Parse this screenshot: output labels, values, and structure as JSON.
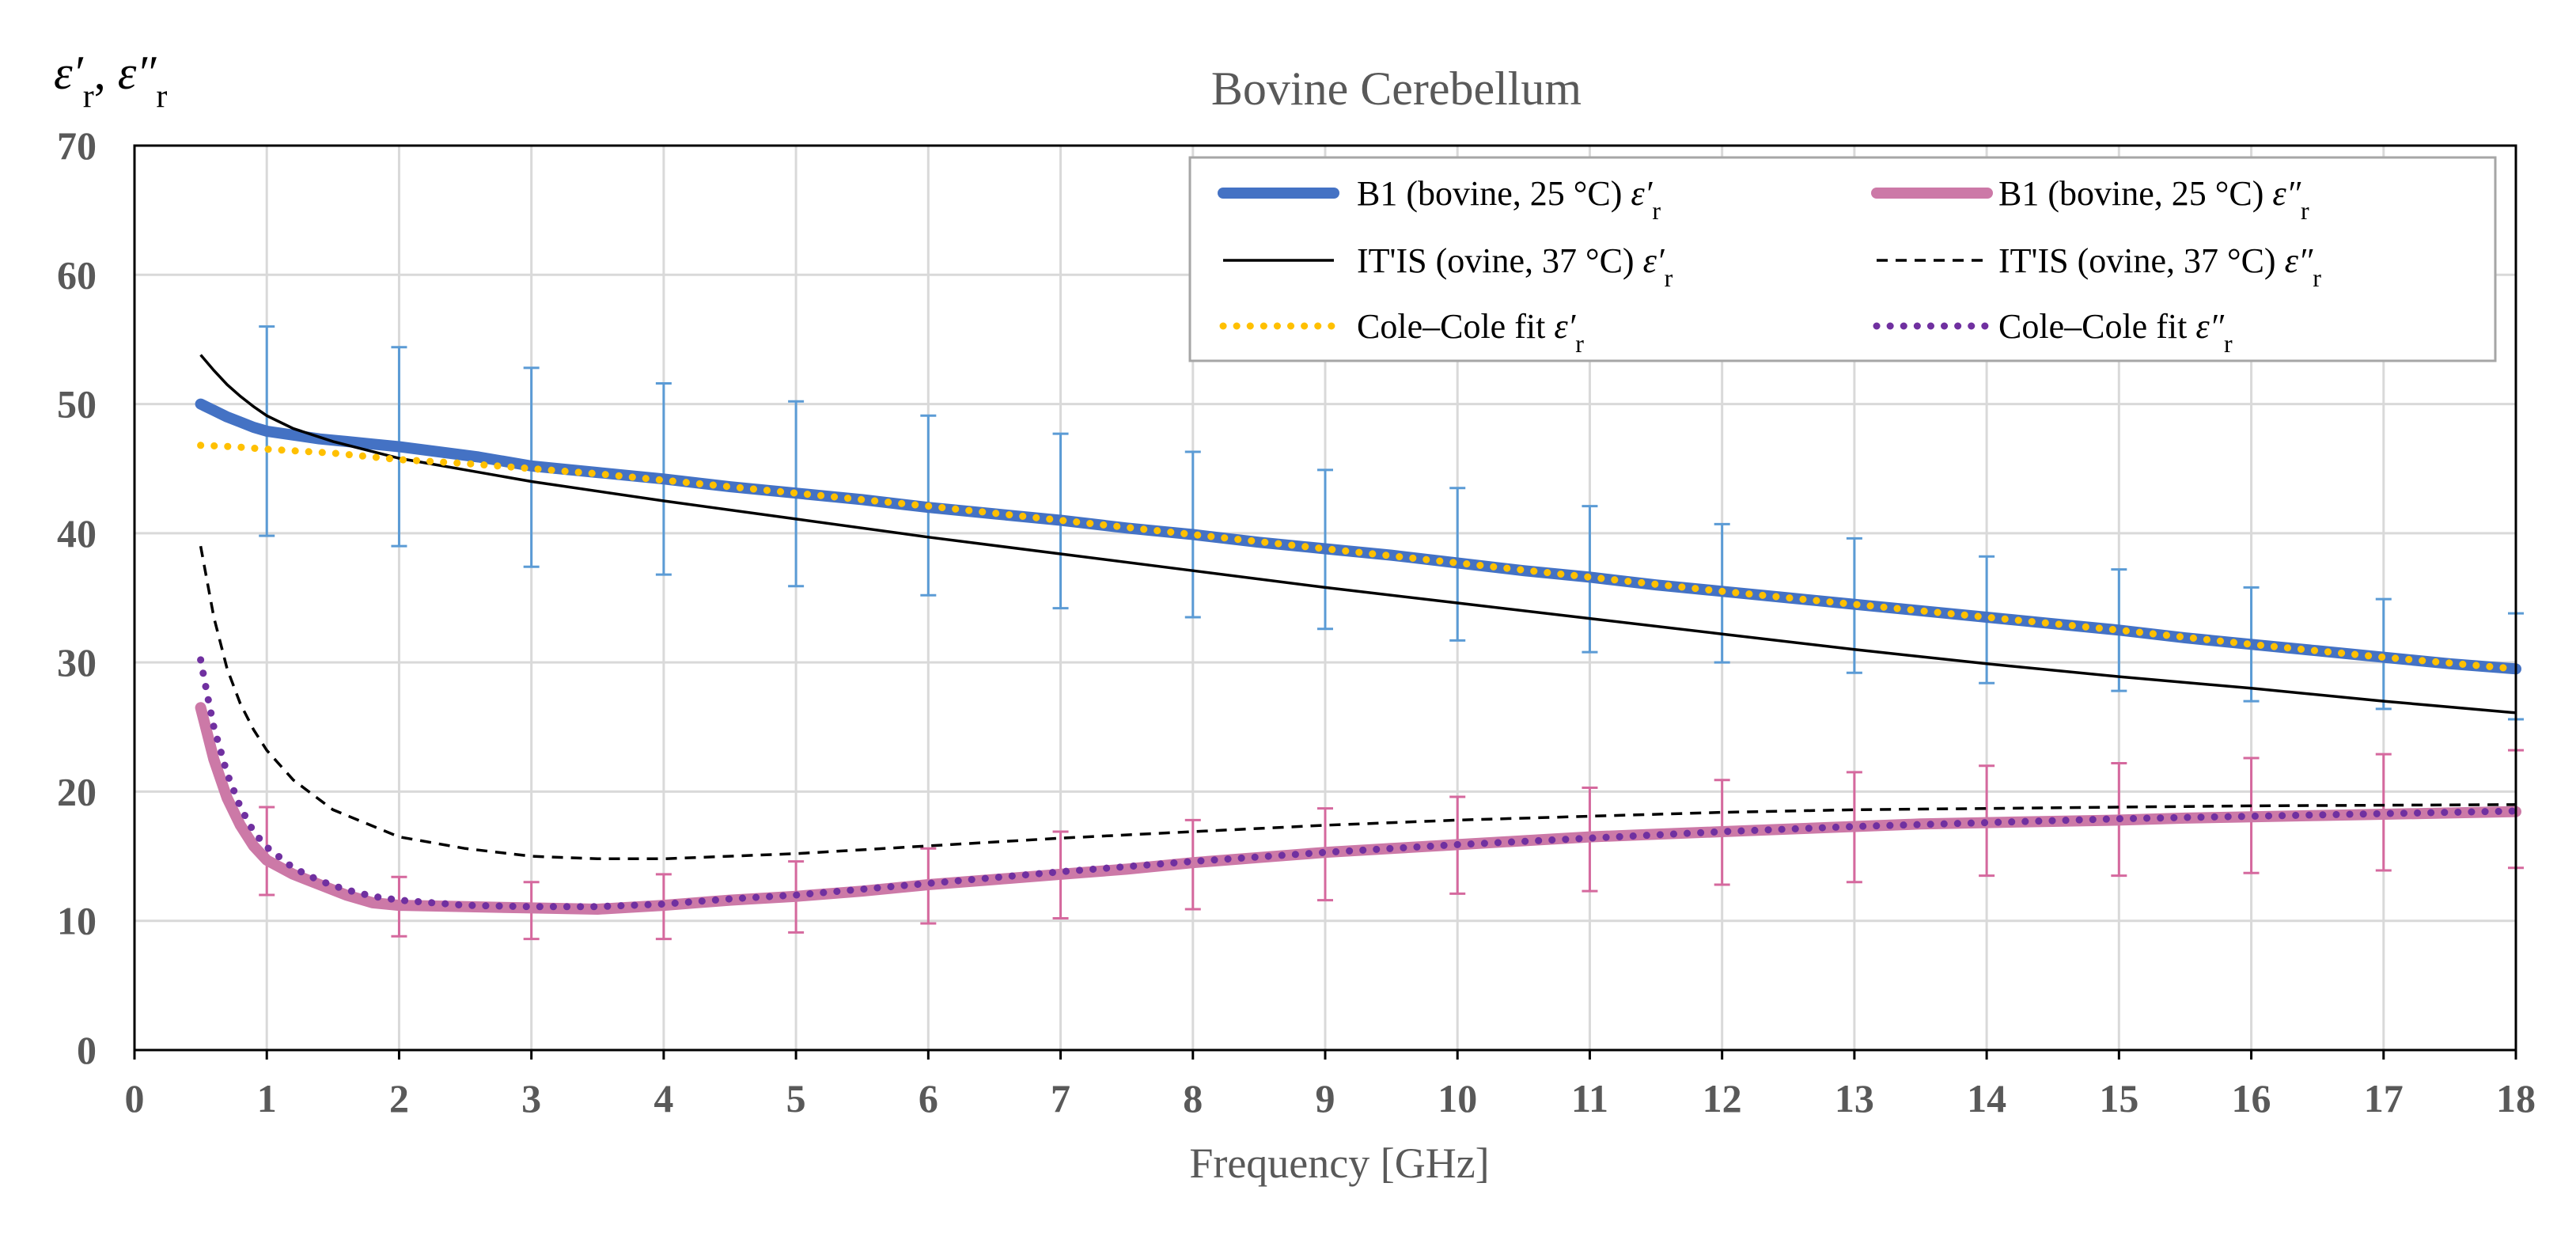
{
  "chart_data": {
    "type": "line",
    "title": "Bovine Cerebellum",
    "xlabel": "Frequency [GHz]",
    "ylabel": {
      "prime": "ε′",
      "double_prime": "ε″",
      "sub": "r",
      "sep": ", "
    },
    "xlim": [
      0,
      18
    ],
    "ylim": [
      0,
      70
    ],
    "xticks": [
      0,
      1,
      2,
      3,
      4,
      5,
      6,
      7,
      8,
      9,
      10,
      11,
      12,
      13,
      14,
      15,
      16,
      17,
      18
    ],
    "yticks": [
      0,
      10,
      20,
      30,
      40,
      50,
      60,
      70
    ],
    "grid": true,
    "legend_position": "top-right",
    "series": [
      {
        "name": "B1 (bovine, 25 °C) ε′r",
        "label_main": "B1 (bovine, 25 °C) ",
        "label_sym": "ε′",
        "style": "thick-solid",
        "color": "#4472C4",
        "x": [
          0.5,
          0.6,
          0.7,
          0.8,
          0.9,
          1.0,
          1.2,
          1.4,
          1.6,
          1.8,
          2.0,
          2.3,
          2.6,
          3.0,
          3.5,
          4.0,
          4.5,
          5,
          5.5,
          6,
          6.5,
          7,
          7.5,
          8,
          8.5,
          9,
          9.5,
          10,
          10.5,
          11,
          11.5,
          12,
          12.5,
          13,
          13.5,
          14,
          14.5,
          15,
          15.5,
          16,
          16.5,
          17,
          17.5,
          18
        ],
        "y": [
          50.0,
          49.5,
          49.0,
          48.6,
          48.2,
          47.9,
          47.6,
          47.3,
          47.1,
          46.9,
          46.7,
          46.3,
          45.9,
          45.2,
          44.7,
          44.2,
          43.6,
          43.1,
          42.6,
          42.0,
          41.5,
          41.0,
          40.4,
          39.9,
          39.3,
          38.8,
          38.3,
          37.7,
          37.1,
          36.6,
          36.0,
          35.5,
          35.0,
          34.5,
          34.0,
          33.5,
          33.0,
          32.5,
          31.9,
          31.4,
          30.9,
          30.4,
          29.9,
          29.5
        ]
      },
      {
        "name": "B1 (bovine, 25 °C) ε″r",
        "label_main": "B1 (bovine, 25 °C) ",
        "label_sym": "ε″",
        "style": "thick-solid",
        "color": "#CC79A7",
        "x": [
          0.5,
          0.55,
          0.6,
          0.7,
          0.8,
          0.9,
          1.0,
          1.2,
          1.4,
          1.6,
          1.8,
          2.0,
          2.5,
          3.0,
          3.5,
          4.0,
          4.5,
          5,
          5.5,
          6,
          6.5,
          7,
          7.5,
          8,
          8.5,
          9,
          9.5,
          10,
          10.5,
          11,
          11.5,
          12,
          12.5,
          13,
          13.5,
          14,
          14.5,
          15,
          15.5,
          16,
          16.5,
          17,
          17.5,
          18
        ],
        "y": [
          26.5,
          24.5,
          22.5,
          19.5,
          17.4,
          15.8,
          14.7,
          13.6,
          12.8,
          12.0,
          11.4,
          11.2,
          11.1,
          11.0,
          10.9,
          11.2,
          11.6,
          11.9,
          12.3,
          12.8,
          13.2,
          13.6,
          14.0,
          14.5,
          14.9,
          15.3,
          15.6,
          15.9,
          16.2,
          16.5,
          16.7,
          16.9,
          17.1,
          17.3,
          17.5,
          17.6,
          17.7,
          17.8,
          17.95,
          18.05,
          18.15,
          18.25,
          18.35,
          18.45
        ]
      },
      {
        "name": "IT'IS (ovine, 37 °C) ε′r",
        "label_main": "IT'IS (ovine, 37 °C) ",
        "label_sym": "ε′",
        "style": "thin-solid",
        "color": "#000000",
        "x": [
          0.5,
          0.6,
          0.7,
          0.8,
          0.9,
          1.0,
          1.2,
          1.5,
          2,
          2.5,
          3,
          4,
          5,
          6,
          7,
          8,
          9,
          10,
          11,
          12,
          13,
          14,
          15,
          16,
          17,
          18
        ],
        "y": [
          53.8,
          52.6,
          51.5,
          50.6,
          49.8,
          49.1,
          48.1,
          47.1,
          45.8,
          44.9,
          44.0,
          42.5,
          41.1,
          39.7,
          38.4,
          37.1,
          35.8,
          34.6,
          33.4,
          32.2,
          31.0,
          29.9,
          28.9,
          28.0,
          27.0,
          26.1
        ]
      },
      {
        "name": "IT'IS (ovine, 37 °C) ε″r",
        "label_main": "IT'IS (ovine, 37 °C) ",
        "label_sym": "ε″",
        "style": "thin-dashed",
        "color": "#000000",
        "x": [
          0.5,
          0.6,
          0.7,
          0.8,
          0.9,
          1.0,
          1.2,
          1.5,
          2,
          2.5,
          3,
          3.5,
          4,
          5,
          6,
          7,
          8,
          9,
          10,
          11,
          12,
          13,
          14,
          15,
          16,
          17,
          18
        ],
        "y": [
          39.0,
          33.5,
          29.5,
          26.8,
          24.8,
          23.2,
          20.9,
          18.6,
          16.5,
          15.6,
          15.0,
          14.8,
          14.8,
          15.2,
          15.8,
          16.4,
          16.9,
          17.4,
          17.8,
          18.1,
          18.4,
          18.6,
          18.7,
          18.8,
          18.9,
          18.95,
          19.0
        ]
      },
      {
        "name": "Cole–Cole fit ε′r",
        "label_main": "Cole–Cole fit ",
        "label_sym": "ε′",
        "style": "dotted",
        "color": "#FFC000",
        "x": [
          0.5,
          0.75,
          1,
          1.5,
          2,
          2.5,
          3,
          3.5,
          4,
          4.5,
          5,
          6,
          7,
          8,
          9,
          10,
          11,
          12,
          13,
          14,
          15,
          16,
          17,
          18
        ],
        "y": [
          46.8,
          46.7,
          46.5,
          46.2,
          45.7,
          45.4,
          45.0,
          44.6,
          44.1,
          43.6,
          43.1,
          42.1,
          41.0,
          39.9,
          38.8,
          37.7,
          36.6,
          35.5,
          34.5,
          33.5,
          32.5,
          31.4,
          30.4,
          29.5
        ]
      },
      {
        "name": "Cole–Cole fit ε″r",
        "label_main": "Cole–Cole fit ",
        "label_sym": "ε″",
        "style": "dotted",
        "color": "#7030A0",
        "x": [
          0.5,
          0.55,
          0.6,
          0.7,
          0.8,
          0.9,
          1.0,
          1.2,
          1.4,
          1.6,
          1.8,
          2.0,
          2.5,
          3.0,
          3.5,
          4.0,
          4.5,
          5,
          6,
          7,
          8,
          9,
          10,
          11,
          12,
          13,
          14,
          15,
          16,
          17,
          18
        ],
        "y": [
          30.2,
          27.5,
          25.0,
          21.4,
          18.8,
          16.9,
          15.7,
          14.1,
          13.1,
          12.4,
          11.9,
          11.6,
          11.2,
          11.1,
          11.1,
          11.3,
          11.7,
          12.0,
          12.9,
          13.8,
          14.6,
          15.3,
          15.9,
          16.4,
          16.9,
          17.3,
          17.6,
          17.9,
          18.1,
          18.3,
          18.5
        ]
      }
    ],
    "error_bars": [
      {
        "series": "B1 (bovine, 25 °C) ε′r",
        "color": "#5B9BD5",
        "x": [
          1,
          2,
          3,
          4,
          5,
          6,
          7,
          8,
          9,
          10,
          11,
          12,
          13,
          14,
          15,
          16,
          17,
          18
        ],
        "lower": [
          39.8,
          39.0,
          37.4,
          36.8,
          35.9,
          35.2,
          34.2,
          33.5,
          32.6,
          31.7,
          30.8,
          30.0,
          29.2,
          28.4,
          27.8,
          27.0,
          26.4,
          25.6
        ],
        "upper": [
          56.0,
          54.4,
          52.8,
          51.6,
          50.2,
          49.1,
          47.7,
          46.3,
          44.9,
          43.5,
          42.1,
          40.7,
          39.6,
          38.2,
          37.2,
          35.8,
          34.9,
          33.8
        ]
      },
      {
        "series": "B1 (bovine, 25 °C) ε″r",
        "color": "#D5699E",
        "x": [
          1,
          2,
          3,
          4,
          5,
          6,
          7,
          8,
          9,
          10,
          11,
          12,
          13,
          14,
          15,
          16,
          17,
          18
        ],
        "lower": [
          12.0,
          8.8,
          8.6,
          8.6,
          9.1,
          9.8,
          10.2,
          10.9,
          11.6,
          12.1,
          12.3,
          12.8,
          13.0,
          13.5,
          13.5,
          13.7,
          13.9,
          14.1
        ],
        "upper": [
          18.8,
          13.4,
          13.0,
          13.6,
          14.6,
          15.6,
          16.9,
          17.8,
          18.7,
          19.6,
          20.3,
          20.9,
          21.5,
          22.0,
          22.2,
          22.6,
          22.9,
          23.2
        ]
      }
    ]
  }
}
